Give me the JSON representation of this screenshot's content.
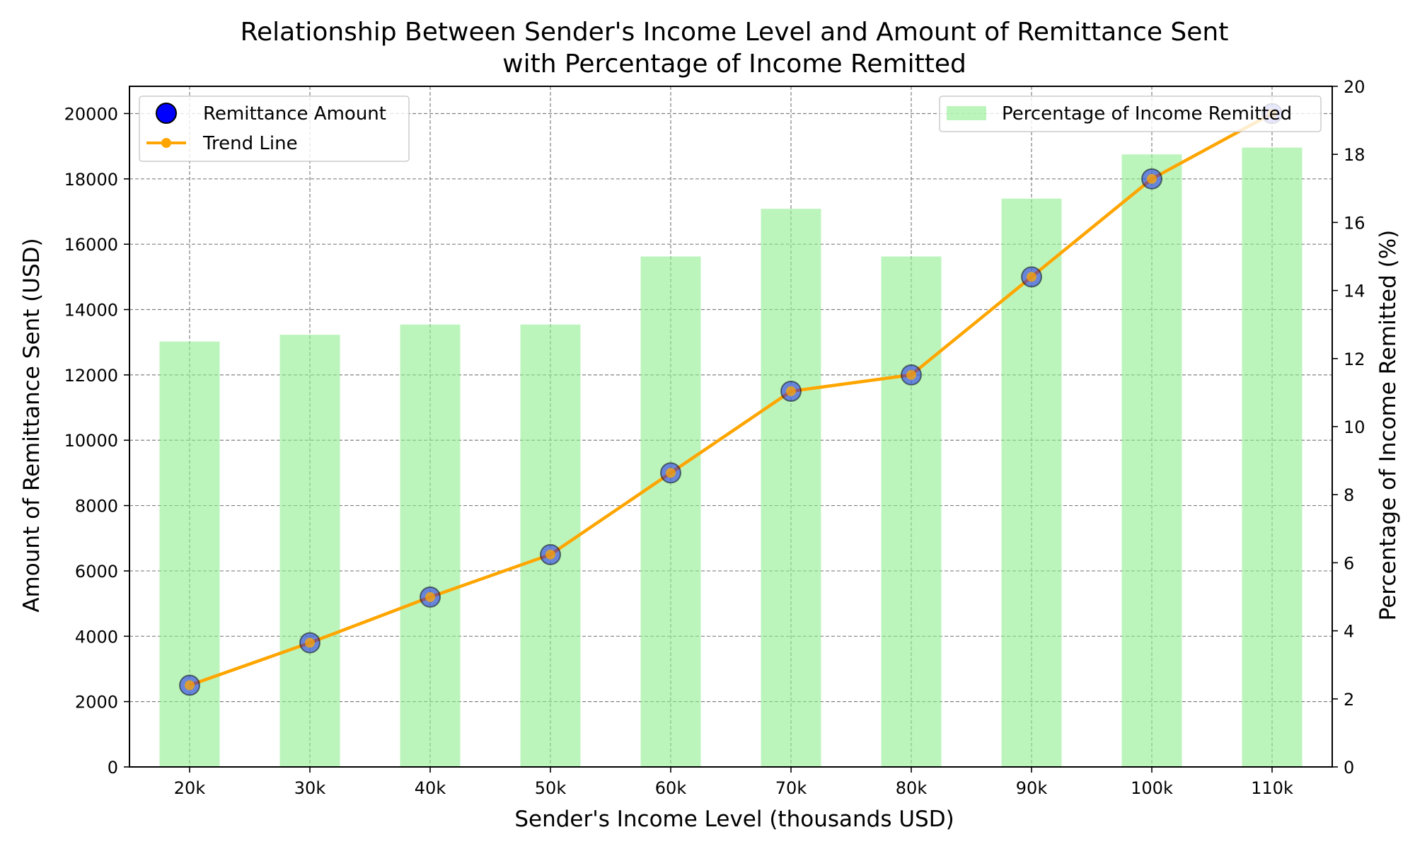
{
  "chart_data": {
    "type": "bar+line+scatter",
    "title_line1": "Relationship Between Sender's Income Level and Amount of Remittance Sent",
    "title_line2": "with Percentage of Income Remitted",
    "xlabel": "Sender's Income Level (thousands USD)",
    "ylabel": "Amount of Remittance Sent (USD)",
    "y2label": "Percentage of Income Remitted (%)",
    "categories": [
      "20k",
      "30k",
      "40k",
      "50k",
      "60k",
      "70k",
      "80k",
      "90k",
      "100k",
      "110k"
    ],
    "remittance_amount": [
      2500,
      3800,
      5200,
      6500,
      9000,
      11500,
      12000,
      15000,
      18000,
      20000
    ],
    "percentage_remitted": [
      12.5,
      12.7,
      13.0,
      13.0,
      15.0,
      16.4,
      15.0,
      16.7,
      18.0,
      18.2
    ],
    "ylim": [
      0,
      20833
    ],
    "y2lim": [
      0,
      20
    ],
    "yticks": [
      0,
      2000,
      4000,
      6000,
      8000,
      10000,
      12000,
      14000,
      16000,
      18000,
      20000
    ],
    "y2ticks": [
      0,
      2,
      4,
      6,
      8,
      10,
      12,
      14,
      16,
      18,
      20
    ],
    "grid": true,
    "legend_left": {
      "placement": "upper left",
      "entries": [
        "Remittance Amount",
        "Trend Line"
      ]
    },
    "legend_right": {
      "placement": "upper right",
      "entries": [
        "Percentage of Income Remitted"
      ]
    },
    "colors": {
      "bar": "#90ee90",
      "trend_line": "#ffa500",
      "scatter": "#0000ff",
      "grid": "#808080"
    }
  }
}
